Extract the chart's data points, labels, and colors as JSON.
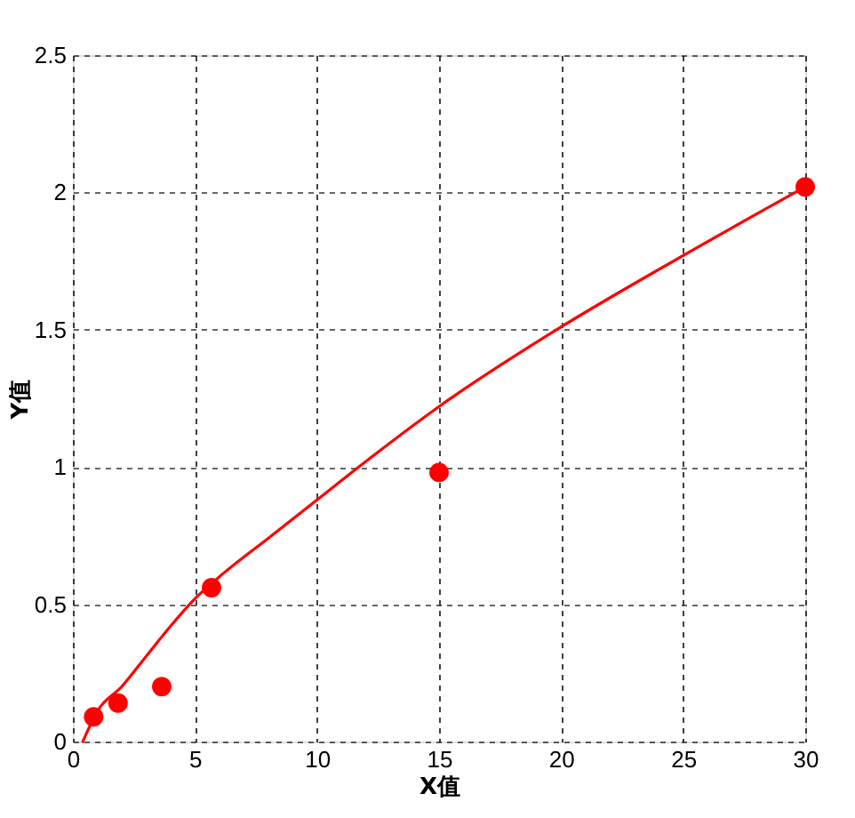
{
  "chart_data": {
    "type": "scatter",
    "xlabel": "X值",
    "ylabel": "Y值",
    "xlim": [
      0,
      30
    ],
    "ylim": [
      0,
      2.5
    ],
    "xticks": [
      0,
      5,
      10,
      15,
      20,
      25,
      30
    ],
    "yticks": [
      0,
      0.5,
      1,
      1.5,
      2,
      2.5
    ],
    "grid": true,
    "series": [
      {
        "color": "#ff0000",
        "marker": "circle",
        "x": [
          0.85,
          1.85,
          3.64,
          5.68,
          15,
          30
        ],
        "values": [
          0.09,
          0.14,
          0.2,
          0.56,
          0.98,
          2.02
        ]
      },
      {
        "type": "line",
        "color": "#ff0000",
        "line_style": "solid",
        "marker": "none",
        "x": [
          0.41,
          1,
          2,
          3,
          4,
          5,
          6,
          8,
          10,
          12,
          15,
          20,
          25,
          30
        ],
        "values": [
          0,
          0.11,
          0.2,
          0.31,
          0.42,
          0.52,
          0.6,
          0.74,
          0.88,
          1.02,
          1.22,
          1.51,
          1.77,
          2.02
        ]
      }
    ]
  }
}
